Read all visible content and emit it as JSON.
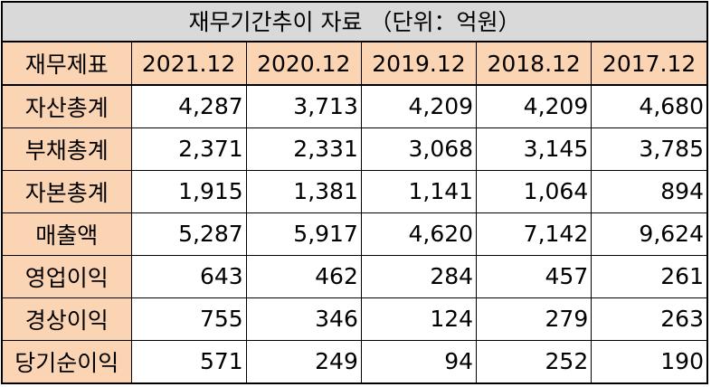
{
  "title": "재무기간추이 자료 （단위：억원）",
  "table": {
    "header_label": "재무제표",
    "periods": [
      "2021.12",
      "2020.12",
      "2019.12",
      "2018.12",
      "2017.12"
    ],
    "rows": [
      {
        "label": "자산총계",
        "values": [
          "4,287",
          "3,713",
          "4,209",
          "4,209",
          "4,680"
        ]
      },
      {
        "label": "부채총계",
        "values": [
          "2,371",
          "2,331",
          "3,068",
          "3,145",
          "3,785"
        ]
      },
      {
        "label": "자본총계",
        "values": [
          "1,915",
          "1,381",
          "1,141",
          "1,064",
          "894"
        ]
      },
      {
        "label": "매출액",
        "values": [
          "5,287",
          "5,917",
          "4,620",
          "7,142",
          "9,624"
        ]
      },
      {
        "label": "영업이익",
        "values": [
          "643",
          "462",
          "284",
          "457",
          "261"
        ]
      },
      {
        "label": "경상이익",
        "values": [
          "755",
          "346",
          "124",
          "279",
          "263"
        ]
      },
      {
        "label": "당기순이익",
        "values": [
          "571",
          "249",
          "94",
          "252",
          "190"
        ]
      }
    ]
  },
  "colors": {
    "header_fill": "#fbd4b4",
    "title_fill": "#d9d9d9",
    "border": "#000000"
  }
}
